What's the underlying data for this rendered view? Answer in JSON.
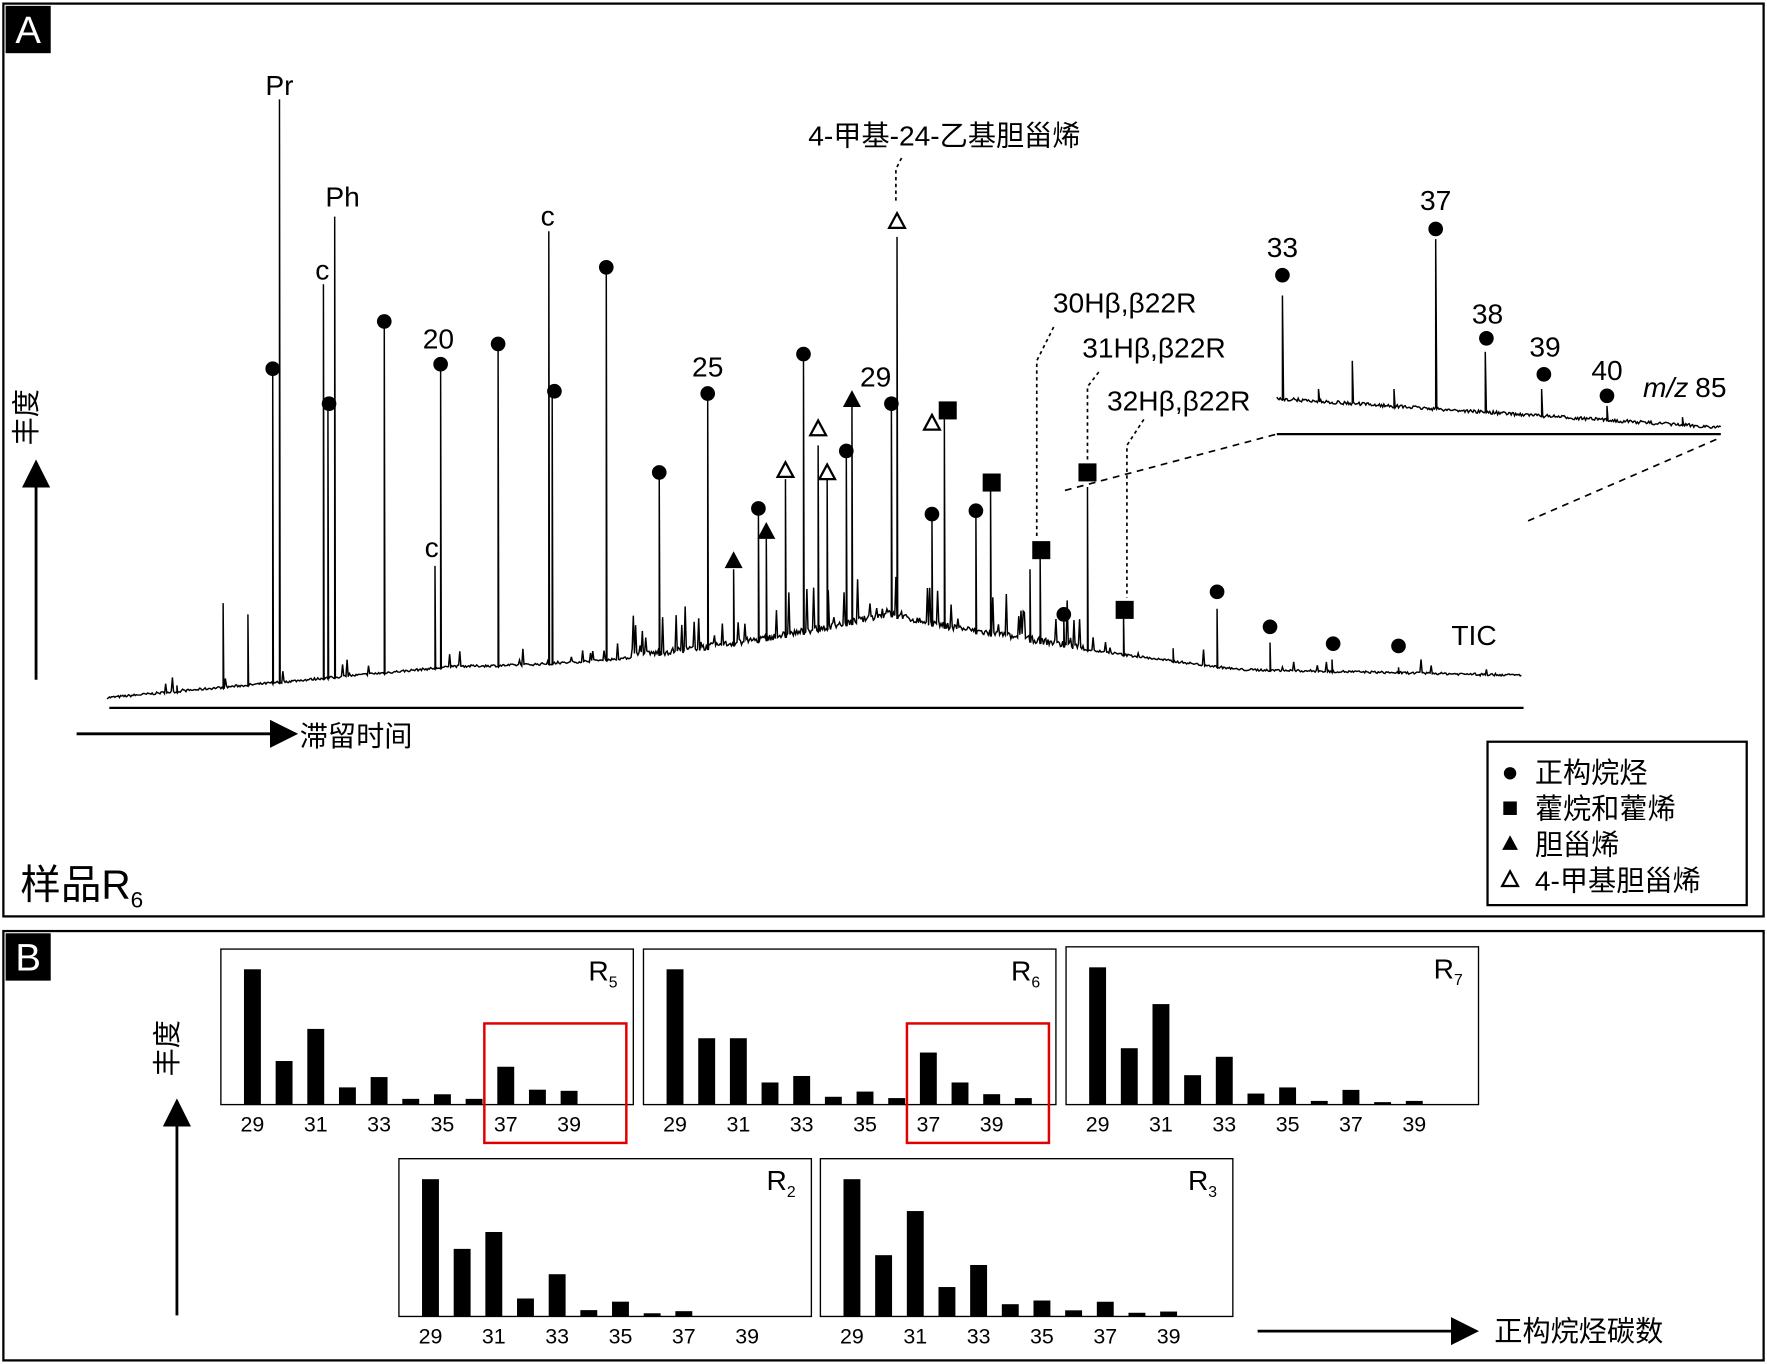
{
  "panel_a": {
    "label": "A",
    "y_axis_label": "丰度",
    "x_axis_label": "滞留时间",
    "sample_label": "样品R",
    "sample_subscript": "6",
    "peak_labels": {
      "pr": "Pr",
      "ph": "Ph",
      "c1": "c",
      "c2": "c",
      "c3": "c",
      "c4": "c",
      "n20": "20",
      "n25": "25",
      "n29": "29",
      "methyl": "4-甲基-24-乙基胆甾烯",
      "h30": "30Hβ,β22R",
      "h31": "31Hβ,β22R",
      "h32": "32Hβ,β22R",
      "tic": "TIC"
    },
    "inset": {
      "labels": [
        "33",
        "37",
        "38",
        "39",
        "40"
      ],
      "mz": "m/z",
      "mz_value": "85"
    },
    "legend": [
      "正构烷烃",
      "藿烷和藿烯",
      "胆甾烯",
      "4-甲基胆甾烯"
    ]
  },
  "panel_b": {
    "label": "B",
    "y_axis_label": "丰度",
    "x_axis_label": "正构烷烃碳数"
  },
  "chart_data": [
    {
      "type": "bar",
      "name": "R",
      "subscript": "5",
      "color": "#000000",
      "categories": [
        29,
        null,
        31,
        null,
        33,
        null,
        35,
        null,
        37,
        null,
        39
      ],
      "values": [
        118,
        38,
        66,
        15,
        24,
        5,
        9,
        5,
        33,
        13,
        12
      ]
    },
    {
      "type": "bar",
      "name": "R",
      "subscript": "6",
      "color": "#000000",
      "categories": [
        29,
        null,
        31,
        null,
        33,
        null,
        35,
        null,
        37,
        null,
        39,
        null
      ],
      "values": [
        104,
        51,
        51,
        17,
        22,
        6,
        10,
        5,
        40,
        17,
        8,
        5
      ]
    },
    {
      "type": "bar",
      "name": "R",
      "subscript": "7",
      "color": "#000000",
      "categories": [
        29,
        null,
        31,
        null,
        33,
        null,
        35,
        null,
        37,
        null,
        39
      ],
      "values": [
        112,
        46,
        82,
        24,
        39,
        9,
        14,
        3,
        12,
        2,
        3
      ]
    },
    {
      "type": "bar",
      "name": "R",
      "subscript": "2",
      "color": "#000000",
      "categories": [
        29,
        null,
        31,
        null,
        33,
        null,
        35,
        null,
        37,
        null,
        39
      ],
      "values": [
        130,
        64,
        80,
        17,
        40,
        6,
        14,
        3,
        5,
        null,
        null
      ]
    },
    {
      "type": "bar",
      "name": "R",
      "subscript": "3",
      "color": "#000000",
      "categories": [
        29,
        null,
        31,
        null,
        33,
        null,
        35,
        null,
        37,
        null,
        39
      ],
      "values": [
        112,
        50,
        86,
        24,
        42,
        10,
        13,
        5,
        12,
        3,
        4
      ]
    }
  ]
}
